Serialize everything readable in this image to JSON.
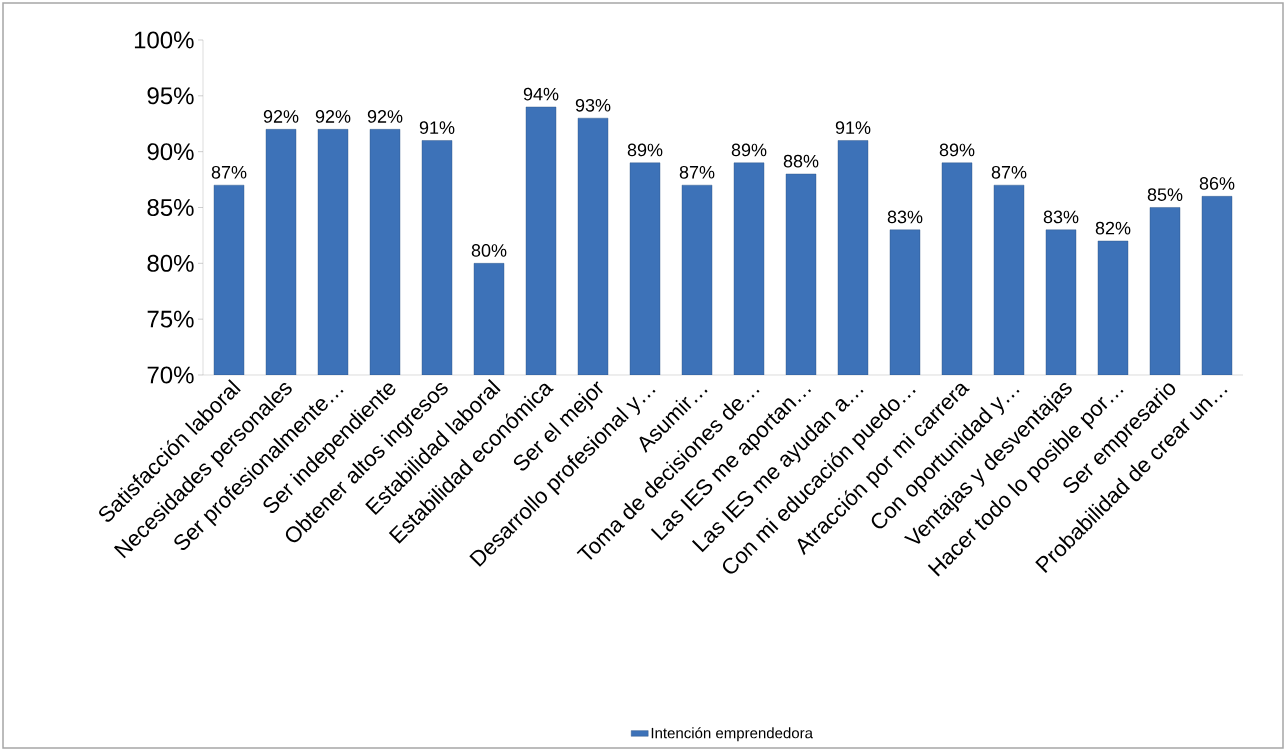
{
  "chart_data": {
    "type": "bar",
    "categories": [
      "Satisfacción laboral",
      "Necesidades personales",
      "Ser profesionalmente…",
      "Ser independiente",
      "Obtener altos ingresos",
      "Estabilidad laboral",
      "Estabilidad económica",
      "Ser el mejor",
      "Desarrollo profesional y…",
      "Asumir…",
      "Toma de decisiones de…",
      "Las IES me aportan…",
      "Las IES me ayudan a…",
      "Con mi educación puedo…",
      "Atracción por mi carrera",
      "Con oportunidad y…",
      "Ventajas y desventajas",
      "Hacer todo lo posible por…",
      "Ser empresario",
      "Probabilidad de crear un…"
    ],
    "series": [
      {
        "name": "Intención emprendedora",
        "color": "#3d72b8",
        "values": [
          87,
          92,
          92,
          92,
          91,
          80,
          94,
          93,
          89,
          87,
          89,
          88,
          91,
          83,
          89,
          87,
          83,
          82,
          85,
          86
        ],
        "value_labels": [
          "87%",
          "92%",
          "92%",
          "92%",
          "91%",
          "80%",
          "94%",
          "93%",
          "89%",
          "87%",
          "89%",
          "88%",
          "91%",
          "83%",
          "89%",
          "87%",
          "83%",
          "82%",
          "85%",
          "86%"
        ]
      }
    ],
    "ylim": [
      70,
      100
    ],
    "yticks": [
      {
        "value": 70,
        "label": "70%"
      },
      {
        "value": 75,
        "label": "75%"
      },
      {
        "value": 80,
        "label": "80%"
      },
      {
        "value": 85,
        "label": "85%"
      },
      {
        "value": 90,
        "label": "90%"
      },
      {
        "value": 95,
        "label": "95%"
      },
      {
        "value": 100,
        "label": "100%"
      }
    ],
    "grid": false,
    "legend": "bottom"
  }
}
